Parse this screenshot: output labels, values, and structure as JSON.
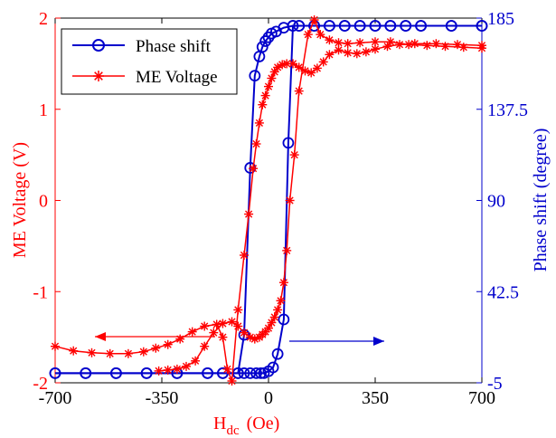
{
  "chart_data": {
    "type": "line",
    "colors": {
      "left": "#ff0000",
      "right": "#0000cc",
      "axis": "#000000"
    },
    "x_axis": {
      "label_main": "H",
      "label_sub": "dc",
      "label_unit": "(Oe)",
      "range": [
        -700,
        700
      ],
      "ticks": [
        -700,
        -350,
        0,
        350,
        700
      ],
      "tick_labels": [
        "-700",
        "-350",
        "0",
        "350",
        "700"
      ]
    },
    "y_left": {
      "label": "ME Voltage  (V)",
      "range": [
        -2,
        2
      ],
      "ticks": [
        -2,
        -1,
        0,
        1,
        2
      ],
      "tick_labels": [
        "-2",
        "-1",
        "0",
        "1",
        "2"
      ],
      "color": "#ff0000"
    },
    "y_right": {
      "label": "Phase shift  (degree)",
      "range": [
        -5,
        185
      ],
      "ticks": [
        -5,
        42.5,
        90,
        137.5,
        185
      ],
      "tick_labels": [
        "-5",
        "42.5",
        "90",
        "137.5",
        "185"
      ],
      "color": "#0000cc"
    },
    "legend": {
      "position": "top-left",
      "entries": [
        "Phase shift",
        "ME Voltage"
      ]
    },
    "series": [
      {
        "name": "Phase shift",
        "axis": "right",
        "marker": "circle",
        "color": "#0000cc",
        "branches": [
          {
            "points": [
              [
                -700,
                0
              ],
              [
                -600,
                0
              ],
              [
                -500,
                0
              ],
              [
                -400,
                0
              ],
              [
                -300,
                0
              ],
              [
                -200,
                0
              ],
              [
                -150,
                0
              ],
              [
                -100,
                0
              ],
              [
                -80,
                20
              ],
              [
                -60,
                107
              ],
              [
                -45,
                155
              ],
              [
                -30,
                165
              ],
              [
                -20,
                170
              ],
              [
                -10,
                173
              ],
              [
                0,
                175
              ],
              [
                10,
                177
              ],
              [
                25,
                178
              ],
              [
                50,
                180
              ],
              [
                80,
                181
              ],
              [
                100,
                181
              ],
              [
                150,
                181
              ],
              [
                200,
                181
              ],
              [
                250,
                181
              ],
              [
                300,
                181
              ],
              [
                350,
                181
              ],
              [
                400,
                181
              ],
              [
                450,
                181
              ],
              [
                500,
                181
              ],
              [
                600,
                181
              ],
              [
                700,
                181
              ]
            ]
          },
          {
            "points": [
              [
                700,
                181
              ],
              [
                600,
                181
              ],
              [
                500,
                181
              ],
              [
                450,
                181
              ],
              [
                400,
                181
              ],
              [
                350,
                181
              ],
              [
                300,
                181
              ],
              [
                250,
                181
              ],
              [
                200,
                181
              ],
              [
                150,
                181
              ],
              [
                100,
                181
              ],
              [
                80,
                181
              ],
              [
                65,
                120
              ],
              [
                50,
                28
              ],
              [
                30,
                10
              ],
              [
                15,
                3
              ],
              [
                0,
                1
              ],
              [
                -15,
                0
              ],
              [
                -25,
                0
              ],
              [
                -40,
                0
              ],
              [
                -60,
                0
              ],
              [
                -80,
                0
              ],
              [
                -100,
                0
              ],
              [
                -150,
                0
              ],
              [
                -200,
                0
              ],
              [
                -300,
                0
              ],
              [
                -400,
                0
              ],
              [
                -500,
                0
              ],
              [
                -600,
                0
              ],
              [
                -700,
                0
              ]
            ]
          }
        ]
      },
      {
        "name": "ME Voltage",
        "axis": "left",
        "marker": "star",
        "color": "#ff0000",
        "branches": [
          {
            "points": [
              [
                -700,
                -1.6
              ],
              [
                -640,
                -1.65
              ],
              [
                -580,
                -1.67
              ],
              [
                -520,
                -1.68
              ],
              [
                -460,
                -1.68
              ],
              [
                -410,
                -1.66
              ],
              [
                -370,
                -1.62
              ],
              [
                -330,
                -1.58
              ],
              [
                -290,
                -1.52
              ],
              [
                -250,
                -1.44
              ],
              [
                -210,
                -1.38
              ],
              [
                -170,
                -1.36
              ],
              [
                -150,
                -1.5
              ],
              [
                -135,
                -1.85
              ],
              [
                -120,
                -1.98
              ],
              [
                -100,
                -1.2
              ],
              [
                -80,
                -0.6
              ],
              [
                -65,
                -0.15
              ],
              [
                -50,
                0.35
              ],
              [
                -40,
                0.62
              ],
              [
                -30,
                0.85
              ],
              [
                -20,
                1.05
              ],
              [
                -10,
                1.15
              ],
              [
                0,
                1.25
              ],
              [
                10,
                1.34
              ],
              [
                20,
                1.41
              ],
              [
                30,
                1.46
              ],
              [
                45,
                1.49
              ],
              [
                60,
                1.5
              ],
              [
                80,
                1.5
              ],
              [
                100,
                1.46
              ],
              [
                120,
                1.42
              ],
              [
                140,
                1.4
              ],
              [
                160,
                1.45
              ],
              [
                180,
                1.52
              ],
              [
                200,
                1.6
              ],
              [
                230,
                1.65
              ],
              [
                260,
                1.62
              ],
              [
                290,
                1.61
              ],
              [
                320,
                1.63
              ],
              [
                350,
                1.66
              ],
              [
                390,
                1.69
              ],
              [
                430,
                1.71
              ],
              [
                480,
                1.72
              ],
              [
                550,
                1.72
              ],
              [
                620,
                1.71
              ],
              [
                700,
                1.7
              ]
            ]
          },
          {
            "points": [
              [
                700,
                1.67
              ],
              [
                640,
                1.68
              ],
              [
                580,
                1.69
              ],
              [
                520,
                1.7
              ],
              [
                460,
                1.71
              ],
              [
                400,
                1.74
              ],
              [
                350,
                1.74
              ],
              [
                300,
                1.73
              ],
              [
                260,
                1.72
              ],
              [
                230,
                1.73
              ],
              [
                200,
                1.76
              ],
              [
                170,
                1.82
              ],
              [
                150,
                1.98
              ],
              [
                130,
                1.82
              ],
              [
                100,
                1.2
              ],
              [
                85,
                0.5
              ],
              [
                70,
                0.0
              ],
              [
                60,
                -0.55
              ],
              [
                50,
                -0.9
              ],
              [
                40,
                -1.1
              ],
              [
                30,
                -1.2
              ],
              [
                20,
                -1.28
              ],
              [
                10,
                -1.34
              ],
              [
                0,
                -1.4
              ],
              [
                -10,
                -1.44
              ],
              [
                -20,
                -1.47
              ],
              [
                -30,
                -1.5
              ],
              [
                -45,
                -1.52
              ],
              [
                -60,
                -1.5
              ],
              [
                -80,
                -1.45
              ],
              [
                -100,
                -1.38
              ],
              [
                -120,
                -1.33
              ],
              [
                -150,
                -1.35
              ],
              [
                -180,
                -1.45
              ],
              [
                -210,
                -1.6
              ],
              [
                -240,
                -1.76
              ],
              [
                -270,
                -1.82
              ],
              [
                -300,
                -1.85
              ],
              [
                -330,
                -1.86
              ],
              [
                -360,
                -1.87
              ]
            ]
          }
        ]
      }
    ]
  }
}
